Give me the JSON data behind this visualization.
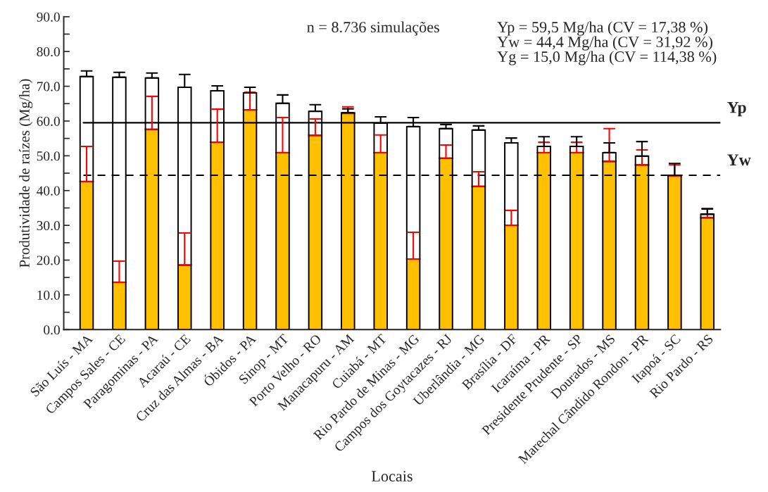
{
  "chart_data": {
    "type": "bar",
    "stacked": true,
    "xlabel": "Locais",
    "ylabel": "Produtividade de raízes (Mg/ha)",
    "categories": [
      "São Luís - MA",
      "Campos Sales - CE",
      "Paragominas - PA",
      "Acaraú - CE",
      "Cruz das Almas - BA",
      "Óbidos - PA",
      "Sinop - MT",
      "Porto Velho - RO",
      "Manacapuru - AM",
      "Cuiabá - MT",
      "Rio Pardo de Minas - MG",
      "Campos dos Goytacazes - RJ",
      "Uberlândia - MG",
      "Brasília - DF",
      "Icaraíma - PR",
      "Presidente Prudente - SP",
      "Dourados - MS",
      "Marechal Cândido Rondon - PR",
      "Itapoá - SC",
      "Rio Pardo - RS"
    ],
    "series": [
      {
        "color": "#ffc000",
        "values": [
          42.6,
          13.6,
          57.6,
          18.6,
          53.9,
          63.2,
          50.9,
          55.9,
          62.2,
          50.9,
          20.3,
          49.3,
          41.2,
          30.0,
          50.9,
          50.9,
          48.4,
          47.4,
          44.2,
          32.2
        ],
        "errors": [
          [
            42.6,
            52.7
          ],
          [
            13.6,
            19.7
          ],
          [
            57.6,
            67.1
          ],
          [
            18.6,
            27.8
          ],
          [
            53.9,
            63.4
          ],
          [
            63.2,
            68.3
          ],
          [
            50.9,
            61.0
          ],
          [
            55.9,
            60.6
          ],
          [
            62.2,
            64.1
          ],
          [
            50.9,
            56.0
          ],
          [
            20.3,
            28.0
          ],
          [
            49.3,
            53.1
          ],
          [
            41.2,
            45.4
          ],
          [
            30.0,
            34.3
          ],
          [
            50.9,
            53.9
          ],
          [
            50.9,
            53.9
          ],
          [
            48.4,
            57.8
          ],
          [
            47.4,
            51.7
          ],
          [
            44.2,
            47.4
          ],
          [
            32.2,
            34.9
          ]
        ]
      },
      {
        "color": "#ffffff",
        "values": [
          30.2,
          59.0,
          14.8,
          51.1,
          14.8,
          4.9,
          14.2,
          6.9,
          0.2,
          8.5,
          38.1,
          8.5,
          16.2,
          23.7,
          1.8,
          1.8,
          2.5,
          2.5,
          0.2,
          1.0
        ],
        "errors": [
          [
            72.8,
            74.4
          ],
          [
            72.6,
            74.0
          ],
          [
            72.4,
            73.8
          ],
          [
            69.7,
            73.4
          ],
          [
            68.7,
            70.1
          ],
          [
            68.1,
            69.7
          ],
          [
            65.1,
            67.5
          ],
          [
            62.8,
            64.7
          ],
          [
            62.4,
            63.5
          ],
          [
            59.4,
            61.2
          ],
          [
            58.4,
            61.0
          ],
          [
            57.8,
            59.0
          ],
          [
            57.4,
            58.6
          ],
          [
            53.7,
            55.1
          ],
          [
            52.7,
            55.5
          ],
          [
            52.7,
            55.5
          ],
          [
            50.9,
            53.7
          ],
          [
            49.9,
            54.1
          ],
          [
            44.4,
            47.8
          ],
          [
            33.2,
            34.7
          ]
        ]
      }
    ],
    "ylim": [
      0,
      90
    ],
    "yticks": [
      {
        "value": 0,
        "label": "0.0"
      },
      {
        "value": 10,
        "label": "10.0"
      },
      {
        "value": 20,
        "label": "20.0"
      },
      {
        "value": 30,
        "label": "30.0"
      },
      {
        "value": 40,
        "label": "40.0"
      },
      {
        "value": 50,
        "label": "50.0"
      },
      {
        "value": 60,
        "label": "60.0"
      },
      {
        "value": 70,
        "label": "70.0"
      },
      {
        "value": 80,
        "label": "80.0"
      },
      {
        "value": 90,
        "label": "90.0"
      }
    ],
    "ref_lines": [
      {
        "axis": "y",
        "value": 59.5,
        "label": "Yp",
        "line_style": "solid"
      },
      {
        "axis": "y",
        "value": 44.4,
        "label": "Yw",
        "line_style": "dashed"
      }
    ],
    "annotations": [
      "n = 8.736 simulações",
      "Yp = 59,5 Mg/ha (CV = 17,38 %)",
      "Yw = 44,4 Mg/ha (CV = 31,92 %)",
      "Yg = 15,0 Mg/ha (CV = 114,38 %)"
    ]
  }
}
